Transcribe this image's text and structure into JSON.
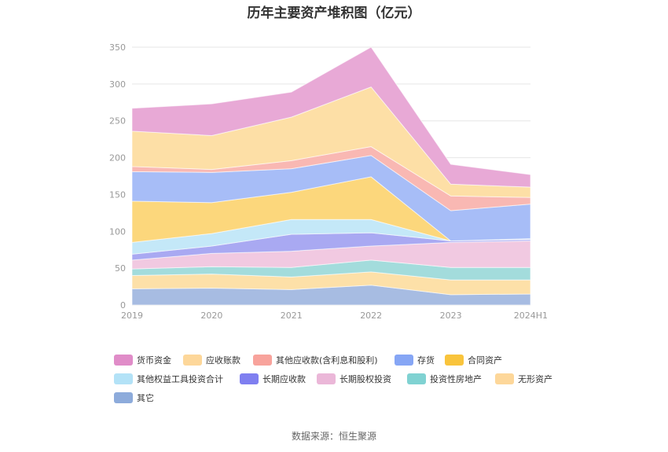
{
  "chart_data": {
    "type": "area",
    "stacked": true,
    "title": "历年主要资产堆积图（亿元）",
    "categories": [
      "2019",
      "2020",
      "2021",
      "2022",
      "2023",
      "2024H1"
    ],
    "ylim": [
      0,
      350
    ],
    "yticks": [
      0,
      50,
      100,
      150,
      200,
      250,
      300,
      350
    ],
    "grid": true,
    "legend_position": "bottom",
    "series": [
      {
        "name": "其它",
        "color": "#a7bce2",
        "values": [
          22,
          23,
          21,
          27,
          14,
          15
        ]
      },
      {
        "name": "无形资产",
        "color": "#fde0a8",
        "values": [
          18,
          19,
          17,
          18,
          20,
          19
        ]
      },
      {
        "name": "投资性房地产",
        "color": "#a3dcdc",
        "values": [
          9,
          10,
          13,
          16,
          17,
          17
        ]
      },
      {
        "name": "长期股权投资",
        "color": "#f1c9e1",
        "values": [
          12,
          18,
          22,
          19,
          34,
          36
        ]
      },
      {
        "name": "长期应收款",
        "color": "#a9a9f2",
        "values": [
          8,
          10,
          23,
          18,
          2,
          2
        ]
      },
      {
        "name": "其他权益工具投资合计",
        "color": "#c4e8f8",
        "values": [
          16,
          17,
          20,
          18,
          0,
          1
        ]
      },
      {
        "name": "合同资产",
        "color": "#fcd77c",
        "values": [
          56,
          42,
          37,
          58,
          0,
          0
        ]
      },
      {
        "name": "存货",
        "color": "#a7bdf7",
        "values": [
          40,
          41,
          32,
          29,
          41,
          47
        ]
      },
      {
        "name": "其他应收款(含利息和股利)",
        "color": "#f9b8b3",
        "values": [
          7,
          4,
          11,
          12,
          20,
          9
        ]
      },
      {
        "name": "应收账款",
        "color": "#fddfa6",
        "values": [
          48,
          46,
          59,
          81,
          16,
          14
        ]
      },
      {
        "name": "货币资金",
        "color": "#e8a9d6",
        "values": [
          31,
          43,
          34,
          54,
          27,
          17
        ]
      }
    ],
    "legend": [
      {
        "name": "货币资金",
        "color": "#e08cc8"
      },
      {
        "name": "应收账款",
        "color": "#fdd79a"
      },
      {
        "name": "其他应收款(含利息和股利)",
        "color": "#f8a39c"
      },
      {
        "name": "存货",
        "color": "#86a6f5"
      },
      {
        "name": "合同资产",
        "color": "#f9c43c"
      },
      {
        "name": "其他权益工具投资合计",
        "color": "#b3e2f7"
      },
      {
        "name": "长期应收款",
        "color": "#7f7ff0"
      },
      {
        "name": "长期股权投资",
        "color": "#ebb7d8"
      },
      {
        "name": "投资性房地产",
        "color": "#80d2d2"
      },
      {
        "name": "无形资产",
        "color": "#fdd79a"
      },
      {
        "name": "其它",
        "color": "#8dabdb"
      }
    ]
  },
  "source": "数据来源：恒生聚源"
}
